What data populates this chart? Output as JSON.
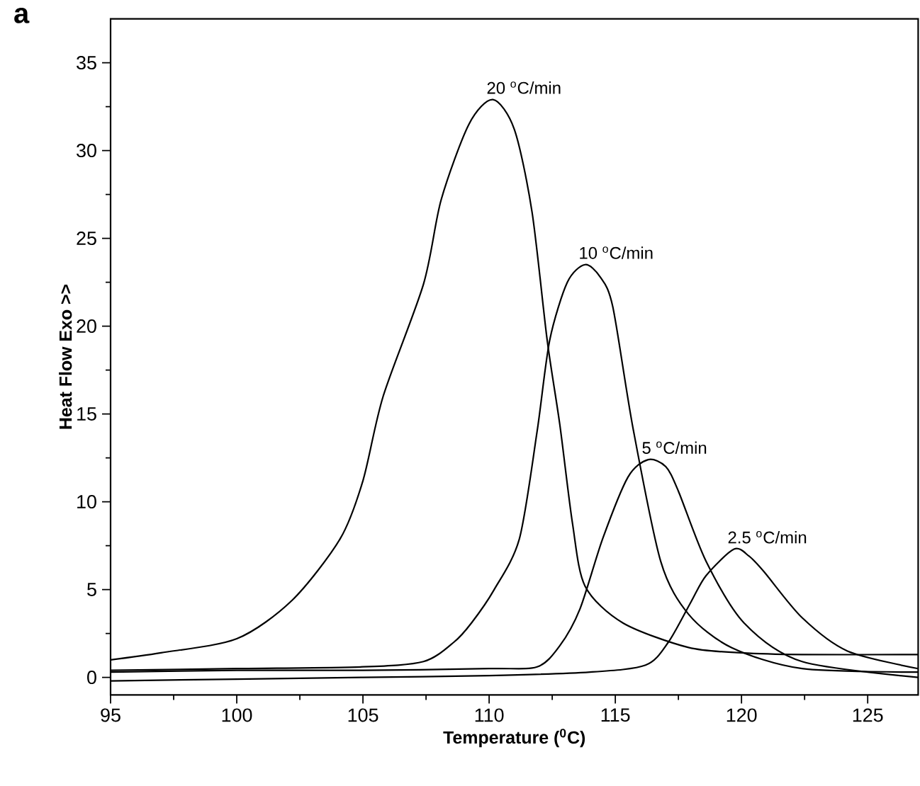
{
  "chart_data": {
    "type": "line",
    "xlabel": "Temperature ($^{0}$C)",
    "ylabel": "Heat Flow Exo >>",
    "xlim": [
      95,
      127
    ],
    "ylim": [
      -1,
      37.5
    ],
    "xticks": [
      95,
      100,
      105,
      110,
      115,
      120,
      125
    ],
    "yticks": [
      0,
      5,
      10,
      15,
      20,
      25,
      30,
      35
    ],
    "grid": false,
    "legend": false,
    "line_style": "solid",
    "annotations": [
      "a"
    ],
    "series": [
      {
        "name": "20 $^{o}$C/min",
        "color": "#000000",
        "x": [
          95,
          97,
          100,
          102.2,
          104.1,
          105,
          105.8,
          107.4,
          108.1,
          109.2,
          110.15,
          111,
          111.7,
          112.3,
          112.8,
          113.3,
          113.8,
          115.3,
          117.9,
          120,
          122.4,
          127
        ],
        "values": [
          1.0,
          1.4,
          2.2,
          4.4,
          7.9,
          11.2,
          16,
          22.4,
          27.2,
          31.5,
          32.9,
          31.2,
          26.5,
          19.2,
          14.4,
          8.8,
          5.2,
          3.1,
          1.7,
          1.4,
          1.3,
          1.3
        ]
      },
      {
        "name": "10 $^{o}$C/min",
        "color": "#000000",
        "x": [
          95,
          100,
          105,
          107.4,
          108.6,
          109.3,
          110.2,
          111.2,
          111.9,
          112.4,
          113.1,
          113.8,
          114.4,
          114.9,
          115.7,
          116.8,
          117.9,
          119.6,
          122.4,
          127
        ],
        "values": [
          0.4,
          0.5,
          0.6,
          0.9,
          2.0,
          3.1,
          5.0,
          7.9,
          14.0,
          19.2,
          22.5,
          23.5,
          22.8,
          21.1,
          14.2,
          6.6,
          3.6,
          1.7,
          0.5,
          0.3
        ]
      },
      {
        "name": "5 $^{o}$C/min",
        "color": "#000000",
        "x": [
          95,
          100,
          105,
          110,
          111.9,
          112.8,
          113.6,
          114.5,
          115.5,
          116.3,
          117,
          117.5,
          118.6,
          120.1,
          122.4,
          127
        ],
        "values": [
          0.3,
          0.4,
          0.4,
          0.5,
          0.6,
          1.8,
          3.9,
          7.9,
          11.4,
          12.4,
          12.0,
          10.6,
          6.6,
          3.1,
          0.9,
          0.0
        ]
      },
      {
        "name": "2.5 $^{o}$C/min",
        "color": "#000000",
        "x": [
          95,
          100,
          105,
          110,
          114,
          116.2,
          117.1,
          118,
          118.6,
          119.7,
          120.3,
          120.9,
          122.4,
          124.2,
          127
        ],
        "values": [
          -0.2,
          -0.1,
          0.0,
          0.1,
          0.3,
          0.7,
          2.0,
          4.3,
          5.8,
          7.3,
          6.9,
          6.0,
          3.4,
          1.5,
          0.5
        ]
      }
    ]
  }
}
